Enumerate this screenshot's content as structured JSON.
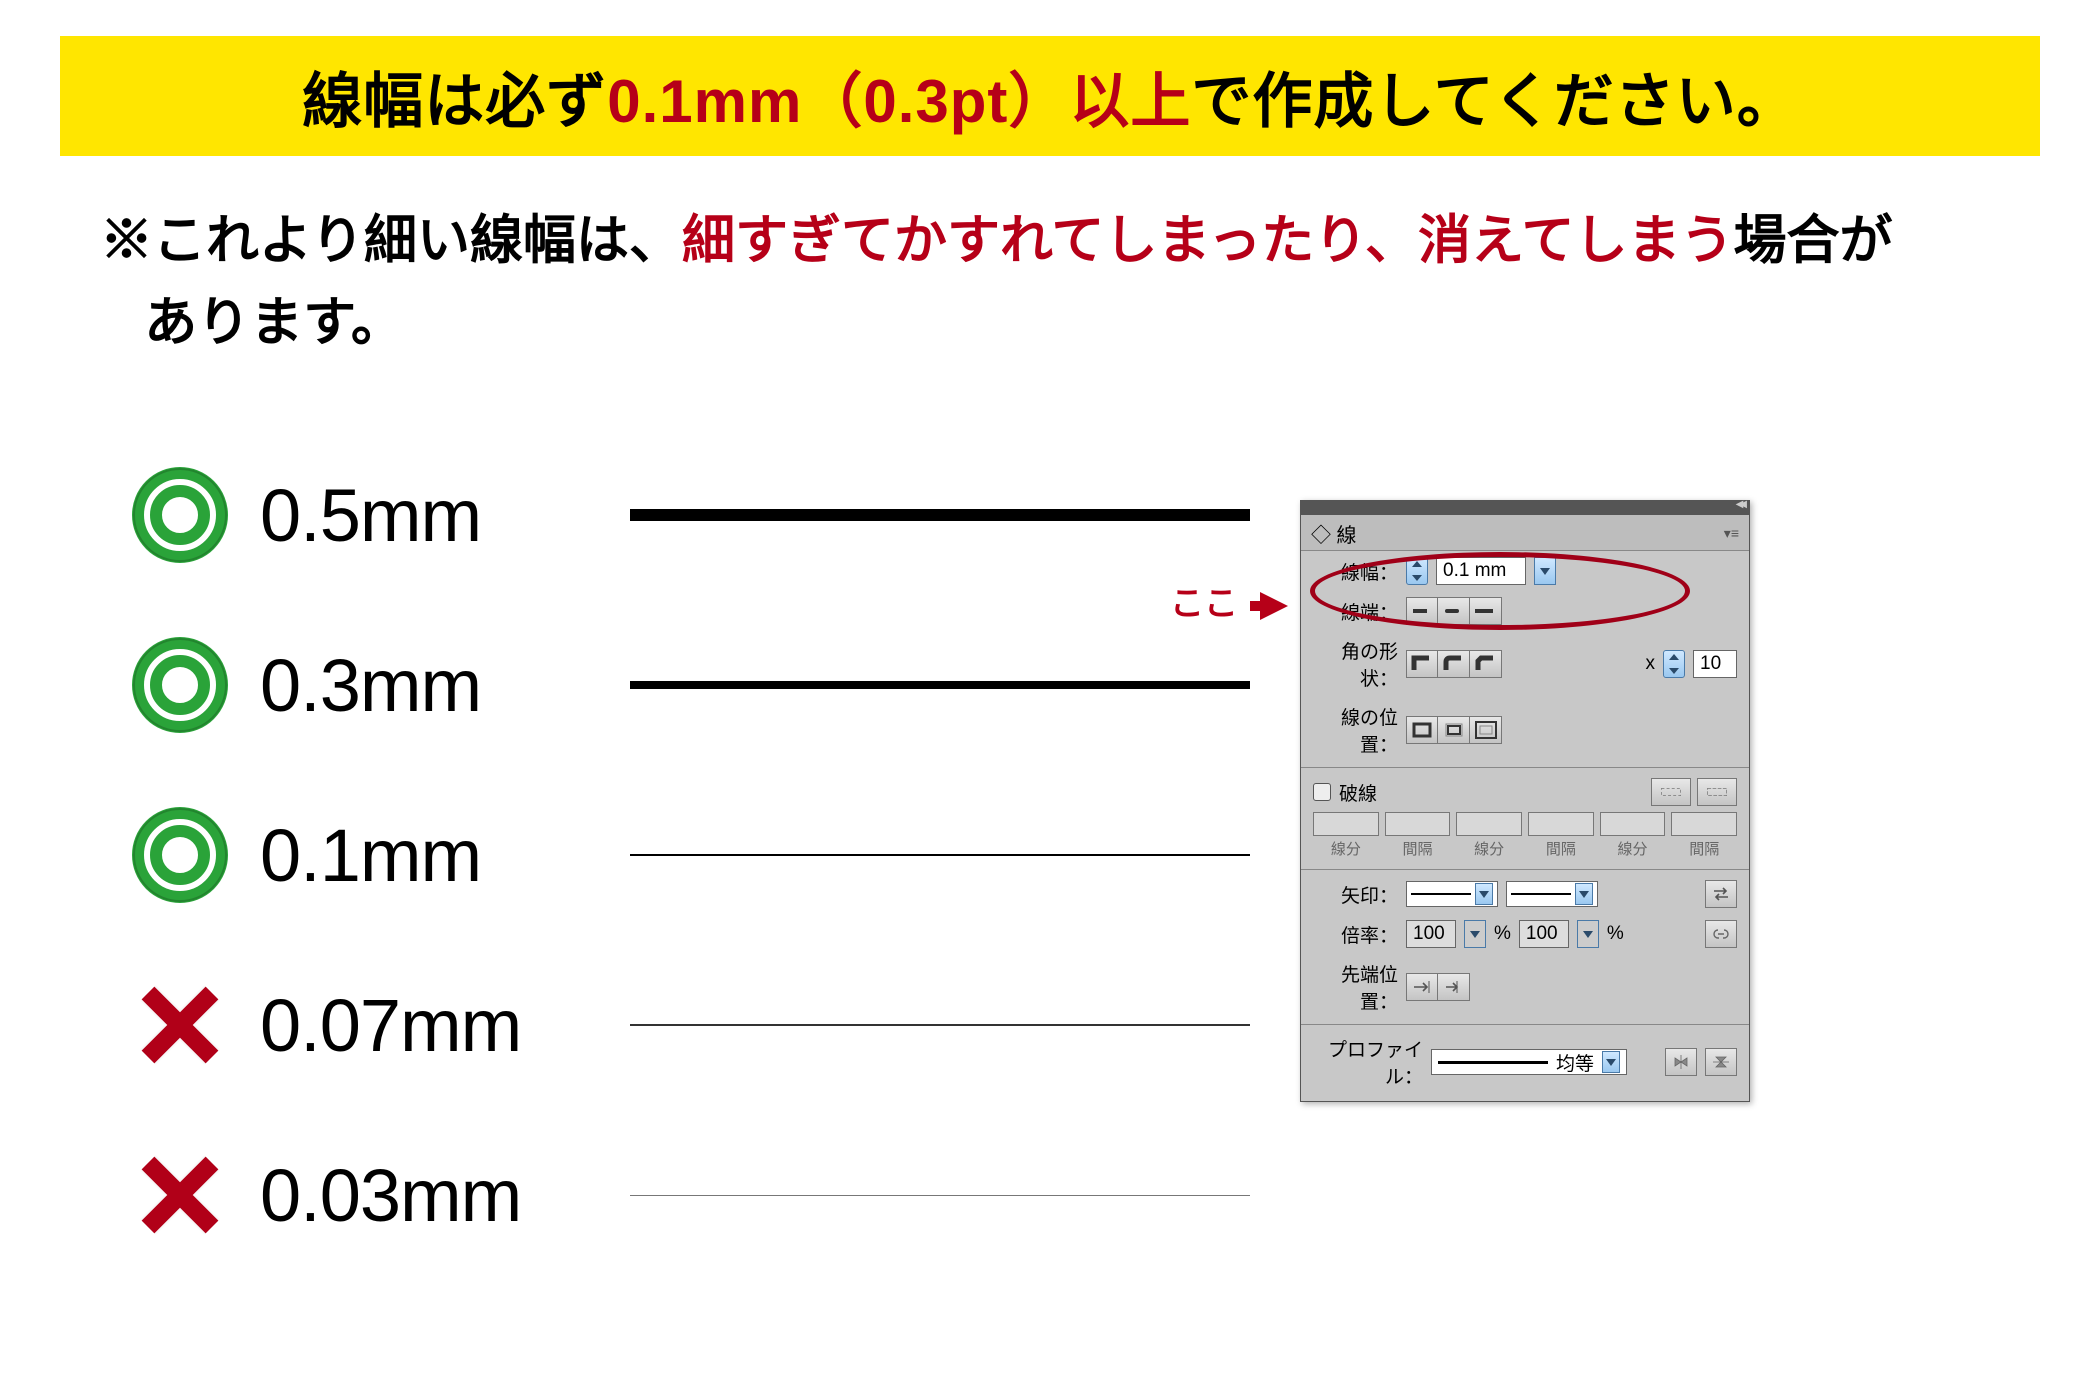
{
  "banner": {
    "part1": "線幅は必ず",
    "emphasis": "0.1mm（0.3pt）以上",
    "part2": "で作成してください。"
  },
  "note": {
    "prefix": "※これより細い線幅は、",
    "emphasis": "細すぎてかすれてしまったり、消えてしまう",
    "suffix1": "場合が",
    "suffix2": "あります。"
  },
  "lines": [
    {
      "status": "ok",
      "label": "0.5mm",
      "thickness_px": 12,
      "color": "#000000"
    },
    {
      "status": "ok",
      "label": "0.3mm",
      "thickness_px": 8,
      "color": "#000000"
    },
    {
      "status": "ok",
      "label": "0.1mm",
      "thickness_px": 2.4,
      "color": "#000000"
    },
    {
      "status": "bad",
      "label": "0.07mm",
      "thickness_px": 1.5,
      "color": "#333333"
    },
    {
      "status": "bad",
      "label": "0.03mm",
      "thickness_px": 0.8,
      "color": "#777777"
    }
  ],
  "mark_colors": {
    "ok": "#2aa339",
    "bad": "#b60018"
  },
  "callout_label": "ここ",
  "panel": {
    "tab_title": "◇ 線",
    "width_label": "線幅：",
    "width_value": "0.1 mm",
    "cap_label": "線端：",
    "corner_label": "角の形状：",
    "miter_x": "x",
    "miter_value": "10",
    "align_label": "線の位置：",
    "dash_check_label": "破線",
    "dash_slots": [
      "線分",
      "間隔",
      "線分",
      "間隔",
      "線分",
      "間隔"
    ],
    "arrow_label": "矢印：",
    "scale_label": "倍率：",
    "scale_value": "100",
    "scale_unit": "%",
    "tip_label": "先端位置：",
    "profile_label": "プロファイル：",
    "profile_value": "均等"
  }
}
